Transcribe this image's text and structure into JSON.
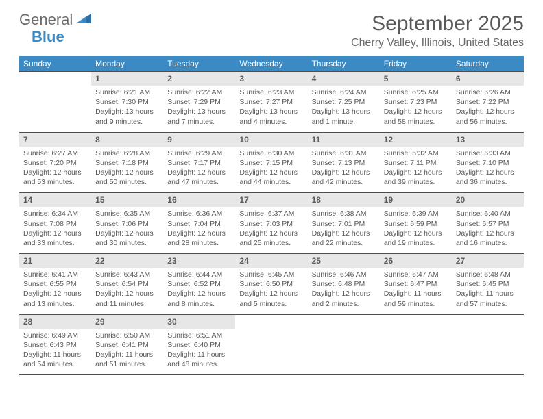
{
  "logo": {
    "word1": "General",
    "word2": "Blue"
  },
  "title": "September 2025",
  "location": "Cherry Valley, Illinois, United States",
  "colors": {
    "header_bg": "#3b8ac4",
    "header_text": "#ffffff",
    "daynum_bg": "#e7e7e7",
    "border": "#4d4d4d",
    "text": "#5a5a5a",
    "logo_gray": "#6a6a6a",
    "logo_blue": "#3b8ac4"
  },
  "weekdays": [
    "Sunday",
    "Monday",
    "Tuesday",
    "Wednesday",
    "Thursday",
    "Friday",
    "Saturday"
  ],
  "weeks": [
    [
      {
        "num": "",
        "sunrise": "",
        "sunset": "",
        "daylight": ""
      },
      {
        "num": "1",
        "sunrise": "Sunrise: 6:21 AM",
        "sunset": "Sunset: 7:30 PM",
        "daylight": "Daylight: 13 hours and 9 minutes."
      },
      {
        "num": "2",
        "sunrise": "Sunrise: 6:22 AM",
        "sunset": "Sunset: 7:29 PM",
        "daylight": "Daylight: 13 hours and 7 minutes."
      },
      {
        "num": "3",
        "sunrise": "Sunrise: 6:23 AM",
        "sunset": "Sunset: 7:27 PM",
        "daylight": "Daylight: 13 hours and 4 minutes."
      },
      {
        "num": "4",
        "sunrise": "Sunrise: 6:24 AM",
        "sunset": "Sunset: 7:25 PM",
        "daylight": "Daylight: 13 hours and 1 minute."
      },
      {
        "num": "5",
        "sunrise": "Sunrise: 6:25 AM",
        "sunset": "Sunset: 7:23 PM",
        "daylight": "Daylight: 12 hours and 58 minutes."
      },
      {
        "num": "6",
        "sunrise": "Sunrise: 6:26 AM",
        "sunset": "Sunset: 7:22 PM",
        "daylight": "Daylight: 12 hours and 56 minutes."
      }
    ],
    [
      {
        "num": "7",
        "sunrise": "Sunrise: 6:27 AM",
        "sunset": "Sunset: 7:20 PM",
        "daylight": "Daylight: 12 hours and 53 minutes."
      },
      {
        "num": "8",
        "sunrise": "Sunrise: 6:28 AM",
        "sunset": "Sunset: 7:18 PM",
        "daylight": "Daylight: 12 hours and 50 minutes."
      },
      {
        "num": "9",
        "sunrise": "Sunrise: 6:29 AM",
        "sunset": "Sunset: 7:17 PM",
        "daylight": "Daylight: 12 hours and 47 minutes."
      },
      {
        "num": "10",
        "sunrise": "Sunrise: 6:30 AM",
        "sunset": "Sunset: 7:15 PM",
        "daylight": "Daylight: 12 hours and 44 minutes."
      },
      {
        "num": "11",
        "sunrise": "Sunrise: 6:31 AM",
        "sunset": "Sunset: 7:13 PM",
        "daylight": "Daylight: 12 hours and 42 minutes."
      },
      {
        "num": "12",
        "sunrise": "Sunrise: 6:32 AM",
        "sunset": "Sunset: 7:11 PM",
        "daylight": "Daylight: 12 hours and 39 minutes."
      },
      {
        "num": "13",
        "sunrise": "Sunrise: 6:33 AM",
        "sunset": "Sunset: 7:10 PM",
        "daylight": "Daylight: 12 hours and 36 minutes."
      }
    ],
    [
      {
        "num": "14",
        "sunrise": "Sunrise: 6:34 AM",
        "sunset": "Sunset: 7:08 PM",
        "daylight": "Daylight: 12 hours and 33 minutes."
      },
      {
        "num": "15",
        "sunrise": "Sunrise: 6:35 AM",
        "sunset": "Sunset: 7:06 PM",
        "daylight": "Daylight: 12 hours and 30 minutes."
      },
      {
        "num": "16",
        "sunrise": "Sunrise: 6:36 AM",
        "sunset": "Sunset: 7:04 PM",
        "daylight": "Daylight: 12 hours and 28 minutes."
      },
      {
        "num": "17",
        "sunrise": "Sunrise: 6:37 AM",
        "sunset": "Sunset: 7:03 PM",
        "daylight": "Daylight: 12 hours and 25 minutes."
      },
      {
        "num": "18",
        "sunrise": "Sunrise: 6:38 AM",
        "sunset": "Sunset: 7:01 PM",
        "daylight": "Daylight: 12 hours and 22 minutes."
      },
      {
        "num": "19",
        "sunrise": "Sunrise: 6:39 AM",
        "sunset": "Sunset: 6:59 PM",
        "daylight": "Daylight: 12 hours and 19 minutes."
      },
      {
        "num": "20",
        "sunrise": "Sunrise: 6:40 AM",
        "sunset": "Sunset: 6:57 PM",
        "daylight": "Daylight: 12 hours and 16 minutes."
      }
    ],
    [
      {
        "num": "21",
        "sunrise": "Sunrise: 6:41 AM",
        "sunset": "Sunset: 6:55 PM",
        "daylight": "Daylight: 12 hours and 13 minutes."
      },
      {
        "num": "22",
        "sunrise": "Sunrise: 6:43 AM",
        "sunset": "Sunset: 6:54 PM",
        "daylight": "Daylight: 12 hours and 11 minutes."
      },
      {
        "num": "23",
        "sunrise": "Sunrise: 6:44 AM",
        "sunset": "Sunset: 6:52 PM",
        "daylight": "Daylight: 12 hours and 8 minutes."
      },
      {
        "num": "24",
        "sunrise": "Sunrise: 6:45 AM",
        "sunset": "Sunset: 6:50 PM",
        "daylight": "Daylight: 12 hours and 5 minutes."
      },
      {
        "num": "25",
        "sunrise": "Sunrise: 6:46 AM",
        "sunset": "Sunset: 6:48 PM",
        "daylight": "Daylight: 12 hours and 2 minutes."
      },
      {
        "num": "26",
        "sunrise": "Sunrise: 6:47 AM",
        "sunset": "Sunset: 6:47 PM",
        "daylight": "Daylight: 11 hours and 59 minutes."
      },
      {
        "num": "27",
        "sunrise": "Sunrise: 6:48 AM",
        "sunset": "Sunset: 6:45 PM",
        "daylight": "Daylight: 11 hours and 57 minutes."
      }
    ],
    [
      {
        "num": "28",
        "sunrise": "Sunrise: 6:49 AM",
        "sunset": "Sunset: 6:43 PM",
        "daylight": "Daylight: 11 hours and 54 minutes."
      },
      {
        "num": "29",
        "sunrise": "Sunrise: 6:50 AM",
        "sunset": "Sunset: 6:41 PM",
        "daylight": "Daylight: 11 hours and 51 minutes."
      },
      {
        "num": "30",
        "sunrise": "Sunrise: 6:51 AM",
        "sunset": "Sunset: 6:40 PM",
        "daylight": "Daylight: 11 hours and 48 minutes."
      },
      {
        "num": "",
        "sunrise": "",
        "sunset": "",
        "daylight": ""
      },
      {
        "num": "",
        "sunrise": "",
        "sunset": "",
        "daylight": ""
      },
      {
        "num": "",
        "sunrise": "",
        "sunset": "",
        "daylight": ""
      },
      {
        "num": "",
        "sunrise": "",
        "sunset": "",
        "daylight": ""
      }
    ]
  ]
}
